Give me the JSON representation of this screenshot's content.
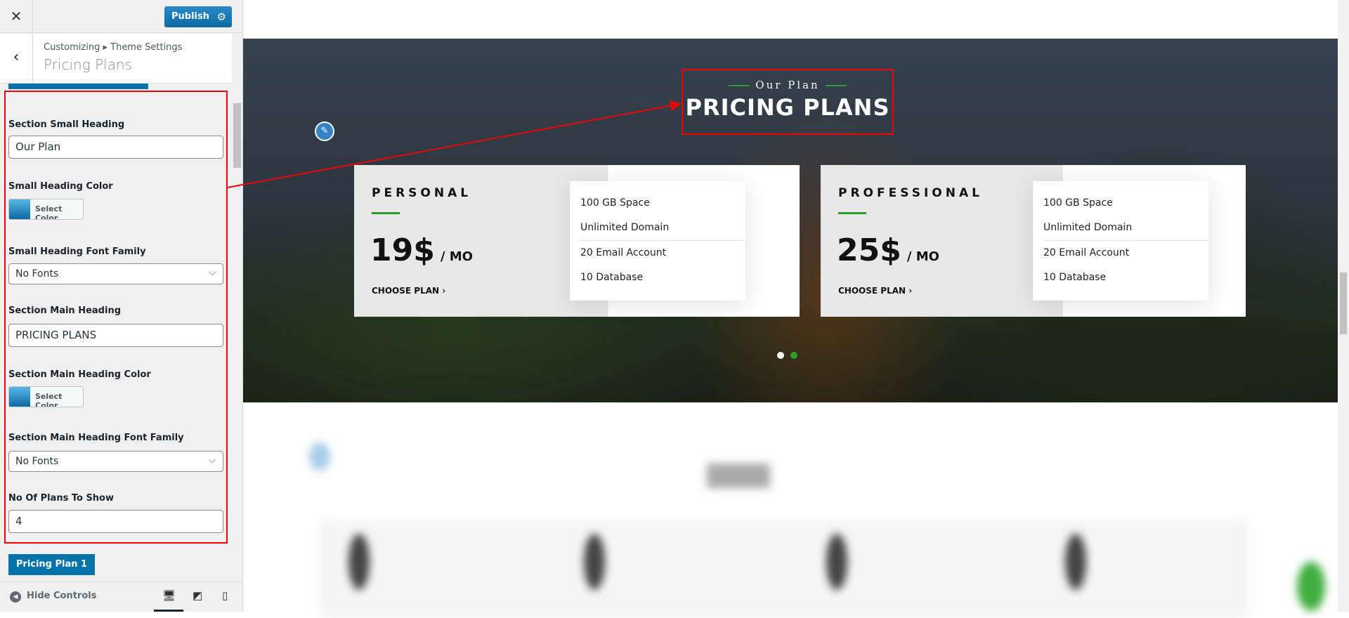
{
  "sidebar": {
    "publish_label": "Publish",
    "breadcrumb": "Customizing ▸ Theme Settings",
    "panel_title": "Pricing Plans",
    "fields": {
      "small_heading_label": "Section Small Heading",
      "small_heading_value": "Our Plan",
      "small_color_label": "Small Heading Color",
      "small_color_button": "Select Color",
      "small_font_label": "Small Heading Font Family",
      "small_font_value": "No Fonts",
      "main_heading_label": "Section Main Heading",
      "main_heading_value": "PRICING PLANS",
      "main_color_label": "Section Main Heading Color",
      "main_color_button": "Select Color",
      "main_font_label": "Section Main Heading Font Family",
      "main_font_value": "No Fonts",
      "plans_label": "No Of Plans To Show",
      "plans_value": "4"
    },
    "plan_button": "Pricing Plan 1",
    "hide_controls": "Hide Controls",
    "accent": "#0073aa"
  },
  "preview": {
    "small_heading": "Our Plan",
    "main_heading": "PRICING PLANS",
    "accent": "#2a9d2a",
    "plans": [
      {
        "name": "PERSONAL",
        "price": "19$",
        "period": "/ MO",
        "cta": "CHOOSE PLAN ›",
        "features": [
          "100 GB Space",
          "Unlimited Domain",
          "20 Email Account",
          "10 Database"
        ]
      },
      {
        "name": "PROFESSIONAL",
        "price": "25$",
        "period": "/ MO",
        "cta": "CHOOSE PLAN ›",
        "features": [
          "100 GB Space",
          "Unlimited Domain",
          "20 Email Account",
          "10 Database"
        ]
      }
    ]
  }
}
